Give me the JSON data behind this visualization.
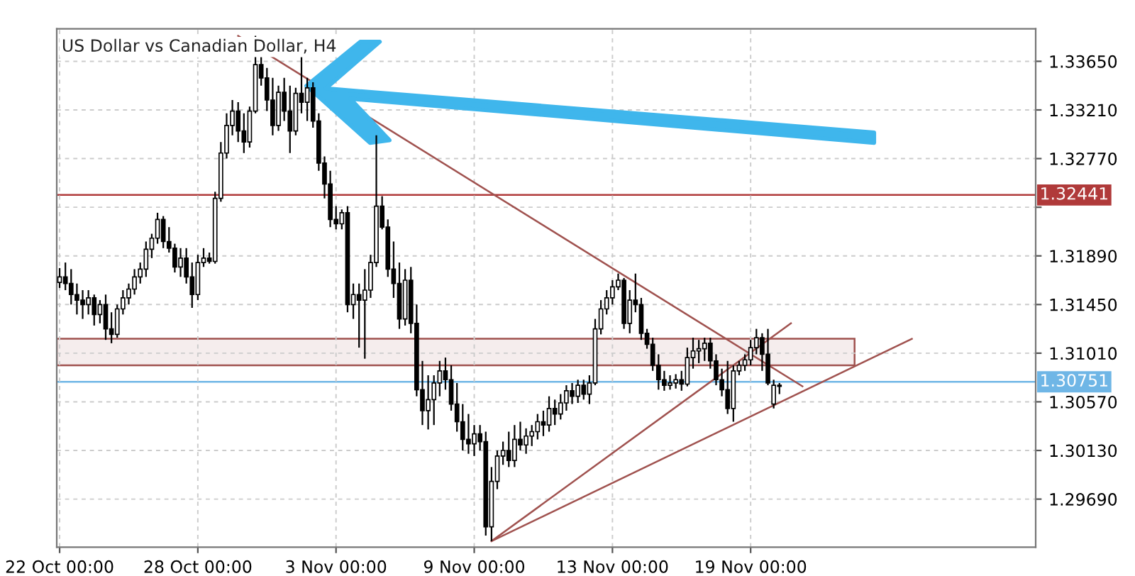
{
  "chart_data": {
    "type": "candlestick",
    "title": "US Dollar vs Canadian Dollar, H4",
    "categories": [
      "22 Oct 00:00",
      null,
      null,
      null,
      null,
      null,
      null,
      null,
      null,
      null,
      null,
      null,
      null,
      null,
      null,
      null,
      null,
      null,
      null,
      null,
      null,
      null,
      null,
      null,
      "28 Oct 00:00",
      null,
      null,
      null,
      null,
      null,
      null,
      null,
      null,
      null,
      null,
      null,
      null,
      null,
      null,
      null,
      null,
      null,
      null,
      null,
      null,
      null,
      null,
      null,
      "3 Nov 00:00",
      null,
      null,
      null,
      null,
      null,
      null,
      null,
      null,
      null,
      null,
      null,
      null,
      null,
      null,
      null,
      null,
      null,
      null,
      null,
      null,
      null,
      null,
      null,
      "9 Nov 00:00",
      null,
      null,
      null,
      null,
      null,
      null,
      null,
      null,
      null,
      null,
      null,
      null,
      null,
      null,
      null,
      null,
      null,
      null,
      null,
      null,
      null,
      null,
      null,
      "13 Nov 00:00",
      null,
      null,
      null,
      null,
      null,
      null,
      null,
      null,
      null,
      null,
      null,
      null,
      null,
      null,
      null,
      null,
      null,
      null,
      null,
      null,
      null,
      null,
      null,
      "19 Nov 00:00",
      null,
      null,
      null,
      null,
      null,
      null,
      null,
      null,
      null,
      null,
      null,
      null,
      null,
      null,
      null,
      null,
      null,
      null,
      null,
      null,
      null,
      null,
      null,
      null,
      null,
      null,
      null,
      null,
      null,
      null,
      null,
      null,
      null,
      null,
      null,
      null,
      null,
      null,
      null,
      null,
      null,
      null,
      null,
      null,
      null,
      null,
      null,
      null,
      null
    ],
    "ohlc": [
      [
        1.3165,
        1.3178,
        1.316,
        1.317
      ],
      [
        1.317,
        1.3183,
        1.3158,
        1.3164
      ],
      [
        1.3164,
        1.3177,
        1.3145,
        1.3154
      ],
      [
        1.3154,
        1.3164,
        1.3136,
        1.3149
      ],
      [
        1.3149,
        1.3158,
        1.3132,
        1.3145
      ],
      [
        1.3145,
        1.3158,
        1.3136,
        1.3151
      ],
      [
        1.3151,
        1.3154,
        1.3126,
        1.3136
      ],
      [
        1.3136,
        1.3149,
        1.3128,
        1.3145
      ],
      [
        1.3145,
        1.3154,
        1.3113,
        1.3123
      ],
      [
        1.3123,
        1.3138,
        1.311,
        1.3118
      ],
      [
        1.3118,
        1.3145,
        1.3115,
        1.3141
      ],
      [
        1.3141,
        1.3158,
        1.3136,
        1.3151
      ],
      [
        1.3151,
        1.3164,
        1.3145,
        1.3159
      ],
      [
        1.3159,
        1.3177,
        1.3154,
        1.317
      ],
      [
        1.317,
        1.3183,
        1.3164,
        1.3177
      ],
      [
        1.3177,
        1.3202,
        1.317,
        1.3195
      ],
      [
        1.3195,
        1.3209,
        1.3187,
        1.3205
      ],
      [
        1.3205,
        1.3228,
        1.32,
        1.3222
      ],
      [
        1.3222,
        1.3225,
        1.3196,
        1.3202
      ],
      [
        1.3202,
        1.3215,
        1.3192,
        1.3196
      ],
      [
        1.3196,
        1.32,
        1.3174,
        1.3179
      ],
      [
        1.3179,
        1.3196,
        1.317,
        1.3187
      ],
      [
        1.3187,
        1.3196,
        1.3164,
        1.317
      ],
      [
        1.317,
        1.3183,
        1.3142,
        1.3154
      ],
      [
        1.3154,
        1.319,
        1.3149,
        1.3183
      ],
      [
        1.3183,
        1.3196,
        1.3179,
        1.3187
      ],
      [
        1.3187,
        1.3192,
        1.3182,
        1.3184
      ],
      [
        1.3184,
        1.3247,
        1.3182,
        1.3241
      ],
      [
        1.3241,
        1.3292,
        1.3238,
        1.3282
      ],
      [
        1.3282,
        1.3318,
        1.3277,
        1.3307
      ],
      [
        1.3307,
        1.333,
        1.3298,
        1.332
      ],
      [
        1.332,
        1.3328,
        1.3292,
        1.3302
      ],
      [
        1.3302,
        1.3318,
        1.3282,
        1.3292
      ],
      [
        1.3292,
        1.3324,
        1.3287,
        1.332
      ],
      [
        1.332,
        1.3388,
        1.3318,
        1.3362
      ],
      [
        1.3362,
        1.3369,
        1.3343,
        1.335
      ],
      [
        1.335,
        1.3359,
        1.332,
        1.333
      ],
      [
        1.333,
        1.335,
        1.3298,
        1.3307
      ],
      [
        1.3307,
        1.3343,
        1.3302,
        1.3337
      ],
      [
        1.3337,
        1.335,
        1.3311,
        1.332
      ],
      [
        1.332,
        1.3343,
        1.3282,
        1.3302
      ],
      [
        1.3302,
        1.3341,
        1.3298,
        1.3336
      ],
      [
        1.3336,
        1.3369,
        1.3318,
        1.3328
      ],
      [
        1.3328,
        1.335,
        1.3311,
        1.3341
      ],
      [
        1.3341,
        1.3346,
        1.3305,
        1.3311
      ],
      [
        1.3311,
        1.3318,
        1.3266,
        1.3273
      ],
      [
        1.3273,
        1.3279,
        1.3241,
        1.3254
      ],
      [
        1.3254,
        1.3266,
        1.3215,
        1.3222
      ],
      [
        1.3222,
        1.3234,
        1.3213,
        1.3218
      ],
      [
        1.3218,
        1.3231,
        1.3213,
        1.3228
      ],
      [
        1.3228,
        1.3234,
        1.3138,
        1.3145
      ],
      [
        1.3145,
        1.3164,
        1.3132,
        1.3154
      ],
      [
        1.3154,
        1.3164,
        1.3106,
        1.3149
      ],
      [
        1.3149,
        1.3177,
        1.3096,
        1.3158
      ],
      [
        1.3158,
        1.319,
        1.3151,
        1.3183
      ],
      [
        1.3183,
        1.3298,
        1.3179,
        1.3234
      ],
      [
        1.3234,
        1.3243,
        1.3213,
        1.3215
      ],
      [
        1.3215,
        1.3222,
        1.317,
        1.3177
      ],
      [
        1.3177,
        1.3202,
        1.3151,
        1.3164
      ],
      [
        1.3164,
        1.3183,
        1.3123,
        1.3132
      ],
      [
        1.3132,
        1.3177,
        1.3126,
        1.3167
      ],
      [
        1.3167,
        1.3179,
        1.3119,
        1.3128
      ],
      [
        1.3128,
        1.3145,
        1.3062,
        1.3068
      ],
      [
        1.3068,
        1.3094,
        1.3036,
        1.3049
      ],
      [
        1.3049,
        1.3081,
        1.3032,
        1.3059
      ],
      [
        1.3059,
        1.3081,
        1.3036,
        1.3074
      ],
      [
        1.3074,
        1.3094,
        1.3062,
        1.3085
      ],
      [
        1.3085,
        1.3097,
        1.3068,
        1.3077
      ],
      [
        1.3077,
        1.309,
        1.3049,
        1.3055
      ],
      [
        1.3055,
        1.3074,
        1.303,
        1.3039
      ],
      [
        1.3039,
        1.3055,
        1.3013,
        1.3023
      ],
      [
        1.3023,
        1.3046,
        1.301,
        1.3019
      ],
      [
        1.3019,
        1.3036,
        1.3008,
        1.3028
      ],
      [
        1.3028,
        1.3036,
        1.3013,
        1.3021
      ],
      [
        1.3021,
        1.303,
        1.2936,
        1.2944
      ],
      [
        1.2944,
        1.2998,
        1.2931,
        1.2985
      ],
      [
        1.2985,
        1.3013,
        1.2978,
        1.3008
      ],
      [
        1.3008,
        1.3021,
        1.3,
        1.3013
      ],
      [
        1.3013,
        1.303,
        1.2998,
        1.3004
      ],
      [
        1.3004,
        1.3036,
        1.2998,
        1.3023
      ],
      [
        1.3023,
        1.3039,
        1.3013,
        1.3018
      ],
      [
        1.3018,
        1.3033,
        1.301,
        1.3026
      ],
      [
        1.3026,
        1.3036,
        1.3017,
        1.303
      ],
      [
        1.303,
        1.3046,
        1.3023,
        1.3039
      ],
      [
        1.3039,
        1.3049,
        1.3026,
        1.3036
      ],
      [
        1.3036,
        1.3062,
        1.303,
        1.3051
      ],
      [
        1.3051,
        1.3059,
        1.3036,
        1.3046
      ],
      [
        1.3046,
        1.3064,
        1.3041,
        1.3056
      ],
      [
        1.3056,
        1.3072,
        1.3049,
        1.3067
      ],
      [
        1.3067,
        1.3074,
        1.3055,
        1.3062
      ],
      [
        1.3062,
        1.3077,
        1.3056,
        1.3072
      ],
      [
        1.3072,
        1.3077,
        1.3059,
        1.3064
      ],
      [
        1.3064,
        1.3081,
        1.3055,
        1.3074
      ],
      [
        1.3074,
        1.3132,
        1.3072,
        1.3123
      ],
      [
        1.3123,
        1.3149,
        1.3118,
        1.3141
      ],
      [
        1.3141,
        1.3158,
        1.3136,
        1.3151
      ],
      [
        1.3151,
        1.3167,
        1.3145,
        1.3161
      ],
      [
        1.3161,
        1.3173,
        1.3158,
        1.3167
      ],
      [
        1.3167,
        1.3169,
        1.3123,
        1.3128
      ],
      [
        1.3128,
        1.3158,
        1.3119,
        1.3149
      ],
      [
        1.3149,
        1.3173,
        1.3138,
        1.3145
      ],
      [
        1.3145,
        1.3151,
        1.3113,
        1.3119
      ],
      [
        1.3119,
        1.3123,
        1.3105,
        1.3109
      ],
      [
        1.3109,
        1.3115,
        1.3085,
        1.309
      ],
      [
        1.309,
        1.31,
        1.3068,
        1.3077
      ],
      [
        1.3077,
        1.3085,
        1.3067,
        1.3072
      ],
      [
        1.3072,
        1.3081,
        1.3068,
        1.3074
      ],
      [
        1.3074,
        1.3082,
        1.3069,
        1.3077
      ],
      [
        1.3077,
        1.3085,
        1.3067,
        1.3073
      ],
      [
        1.3073,
        1.3106,
        1.3071,
        1.3097
      ],
      [
        1.3097,
        1.3115,
        1.3087,
        1.3103
      ],
      [
        1.3103,
        1.3113,
        1.3092,
        1.3105
      ],
      [
        1.3105,
        1.3115,
        1.3094,
        1.311
      ],
      [
        1.311,
        1.3115,
        1.3087,
        1.3094
      ],
      [
        1.3094,
        1.31,
        1.3072,
        1.3077
      ],
      [
        1.3077,
        1.3087,
        1.3062,
        1.3068
      ],
      [
        1.3068,
        1.3094,
        1.3046,
        1.3051
      ],
      [
        1.3051,
        1.309,
        1.3039,
        1.3085
      ],
      [
        1.3085,
        1.3094,
        1.3081,
        1.309
      ],
      [
        1.309,
        1.31,
        1.3085,
        1.3095
      ],
      [
        1.3095,
        1.3113,
        1.309,
        1.3106
      ],
      [
        1.3106,
        1.3123,
        1.31,
        1.3115
      ],
      [
        1.3115,
        1.3119,
        1.3085,
        1.31
      ],
      [
        1.31,
        1.3123,
        1.3072,
        1.3074
      ],
      [
        1.3055,
        1.3077,
        1.3051,
        1.3072
      ],
      [
        1.3072,
        1.3074,
        1.3064,
        1.3071
      ],
      null,
      null,
      null,
      null,
      null,
      null,
      null,
      null,
      null,
      null,
      null,
      null,
      null,
      null,
      null,
      null,
      null,
      null,
      null,
      null,
      null,
      null,
      null,
      null,
      null,
      null,
      null,
      null,
      null,
      null,
      null,
      null,
      null,
      null,
      null,
      null,
      null,
      null,
      null,
      null,
      null,
      null,
      null,
      null
    ],
    "color": "#000000",
    "series": [
      {
        "type": "line",
        "color": "#a0524f",
        "values": [
          null,
          null,
          null,
          null,
          null,
          null,
          null,
          null,
          null,
          null,
          null,
          null,
          null,
          null,
          null,
          null,
          null,
          null,
          null,
          null,
          null,
          null,
          null,
          null,
          null,
          null,
          null,
          null,
          null,
          null,
          null,
          1.3388,
          null,
          null,
          null,
          null,
          null,
          null,
          null,
          null,
          null,
          null,
          null,
          null,
          null,
          null,
          null,
          null,
          null,
          null,
          null,
          null,
          null,
          null,
          null,
          null,
          null,
          null,
          null,
          null,
          null,
          null,
          null,
          null,
          null,
          null,
          null,
          null,
          null,
          null,
          null,
          null,
          null,
          null,
          null,
          null,
          null,
          null,
          null,
          null,
          null,
          null,
          null,
          null,
          null,
          null,
          null,
          null,
          null,
          null,
          null,
          null,
          null,
          null,
          null,
          null,
          null,
          null,
          null,
          null,
          null,
          null,
          null,
          null,
          null,
          null,
          null,
          null,
          null,
          null,
          null,
          null,
          null,
          null,
          null,
          null,
          null,
          null,
          null,
          null,
          null,
          null,
          null,
          null,
          null,
          null,
          null,
          null,
          null,
          1.3071,
          null,
          null,
          null,
          null,
          null,
          null,
          null,
          null,
          null,
          null,
          null,
          null,
          null,
          null,
          null,
          null,
          null,
          null,
          null,
          null,
          null,
          null,
          null,
          null,
          null,
          null,
          null,
          null,
          null,
          null,
          null,
          null,
          null,
          null,
          null,
          null,
          null,
          null,
          null,
          null
        ]
      },
      {
        "type": "line",
        "color": "#a0524f",
        "values": [
          null,
          null,
          null,
          null,
          null,
          null,
          null,
          null,
          null,
          null,
          null,
          null,
          null,
          null,
          null,
          null,
          null,
          null,
          null,
          null,
          null,
          null,
          null,
          null,
          null,
          null,
          null,
          null,
          null,
          null,
          null,
          null,
          null,
          null,
          null,
          null,
          null,
          null,
          null,
          null,
          null,
          null,
          null,
          null,
          null,
          null,
          null,
          null,
          null,
          null,
          null,
          null,
          null,
          null,
          null,
          null,
          null,
          null,
          null,
          null,
          null,
          null,
          null,
          null,
          null,
          null,
          null,
          null,
          null,
          null,
          null,
          null,
          null,
          null,
          null,
          1.2931,
          null,
          null,
          null,
          null,
          null,
          null,
          null,
          null,
          null,
          null,
          null,
          null,
          null,
          null,
          null,
          null,
          null,
          null,
          null,
          null,
          null,
          null,
          null,
          null,
          null,
          null,
          null,
          null,
          null,
          null,
          null,
          null,
          null,
          null,
          null,
          null,
          null,
          null,
          null,
          null,
          null,
          null,
          null,
          null,
          null,
          null,
          null,
          null,
          null,
          null,
          null,
          1.3128,
          null,
          null,
          null,
          null,
          null,
          null,
          null,
          null,
          null,
          null,
          null,
          null,
          null,
          null,
          null,
          null,
          null,
          null,
          null,
          null,
          null,
          null,
          null,
          null,
          null,
          null,
          null,
          null,
          null,
          null,
          null,
          null,
          null,
          null,
          null,
          null,
          null,
          null,
          null,
          null,
          null,
          null
        ]
      },
      {
        "type": "line",
        "color": "#a0524f",
        "values": [
          null,
          null,
          null,
          null,
          null,
          null,
          null,
          null,
          null,
          null,
          null,
          null,
          null,
          null,
          null,
          null,
          null,
          null,
          null,
          null,
          null,
          null,
          null,
          null,
          null,
          null,
          null,
          null,
          null,
          null,
          null,
          null,
          null,
          null,
          null,
          null,
          null,
          null,
          null,
          null,
          null,
          null,
          null,
          null,
          null,
          null,
          null,
          null,
          null,
          null,
          null,
          null,
          null,
          null,
          null,
          null,
          null,
          null,
          null,
          null,
          null,
          null,
          null,
          null,
          null,
          null,
          null,
          null,
          null,
          null,
          null,
          null,
          null,
          null,
          null,
          1.2931,
          null,
          null,
          null,
          null,
          null,
          null,
          null,
          null,
          null,
          null,
          null,
          null,
          null,
          null,
          null,
          null,
          null,
          null,
          null,
          null,
          null,
          null,
          null,
          null,
          null,
          null,
          null,
          null,
          null,
          null,
          null,
          null,
          null,
          null,
          null,
          null,
          null,
          null,
          null,
          null,
          null,
          null,
          null,
          null,
          null,
          null,
          null,
          null,
          null,
          null,
          null,
          null,
          null,
          null,
          null,
          null,
          null,
          null,
          null,
          null,
          null,
          null,
          null,
          null,
          null,
          null,
          null,
          null,
          null,
          null,
          null,
          null,
          1.3114,
          null,
          null,
          null,
          null,
          null,
          null,
          null,
          null,
          null,
          null,
          null,
          null,
          null,
          null,
          null,
          null,
          null,
          null,
          null,
          null,
          null
        ]
      }
    ],
    "ref_lines": [
      {
        "axis": "y",
        "value": 1.32441,
        "label": "1.32441",
        "color": "#b03a3a"
      },
      {
        "axis": "y",
        "value": 1.30751,
        "label": "1.30751",
        "color": "#6fb6e6"
      }
    ],
    "bands": [
      {
        "axis": "y",
        "from": 1.309,
        "to": 1.3114,
        "color": "#a0524f"
      }
    ],
    "ylim": [
      1.29255,
      1.33944
    ],
    "yticks": [
      {
        "value": 1.3365,
        "label": "1.33650"
      },
      {
        "value": 1.3321,
        "label": "1.33210"
      },
      {
        "value": 1.3277,
        "label": "1.32770"
      },
      {
        "value": 1.3233,
        "label": null
      },
      {
        "value": 1.3189,
        "label": "1.31890"
      },
      {
        "value": 1.3145,
        "label": "1.31450"
      },
      {
        "value": 1.3101,
        "label": "1.31010"
      },
      {
        "value": 1.3057,
        "label": "1.30570"
      },
      {
        "value": 1.3013,
        "label": "1.30130"
      },
      {
        "value": 1.2969,
        "label": "1.29690"
      }
    ],
    "grid": true
  }
}
